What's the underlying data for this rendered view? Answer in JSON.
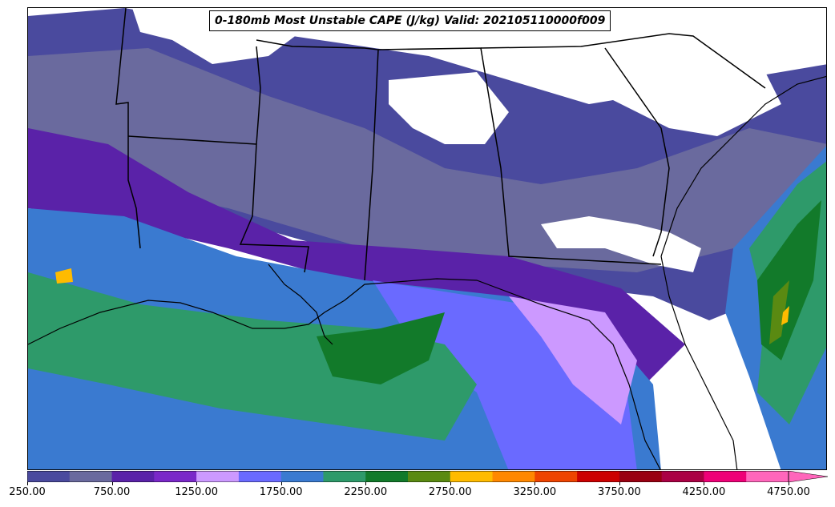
{
  "title": "0-180mb Most Unstable CAPE (J/kg) Valid: 202105110000f009",
  "colorbar": {
    "levels": [
      250,
      500,
      750,
      1000,
      1250,
      1500,
      1750,
      2000,
      2250,
      2500,
      2750,
      3000,
      3250,
      3500,
      3750,
      4000,
      4250,
      4500,
      4750
    ],
    "colors": [
      "#4a4a9e",
      "#6a6a9e",
      "#5a22a8",
      "#7a28c8",
      "#cc99ff",
      "#6a6aff",
      "#3a7ad0",
      "#2e9a6a",
      "#127a2a",
      "#5a8a12",
      "#ffbb00",
      "#ff8800",
      "#ee4400",
      "#cc0000",
      "#990011",
      "#aa0044",
      "#ee0077",
      "#ff66bb"
    ],
    "tick_labels": [
      "250.00",
      "750.00",
      "1250.00",
      "1750.00",
      "2250.00",
      "2750.00",
      "3250.00",
      "3750.00",
      "4250.00",
      "4750.00"
    ],
    "extend": "max"
  },
  "map": {
    "region": "Southeastern United States and Gulf of Mexico",
    "basemap": "state borders and coastlines"
  }
}
